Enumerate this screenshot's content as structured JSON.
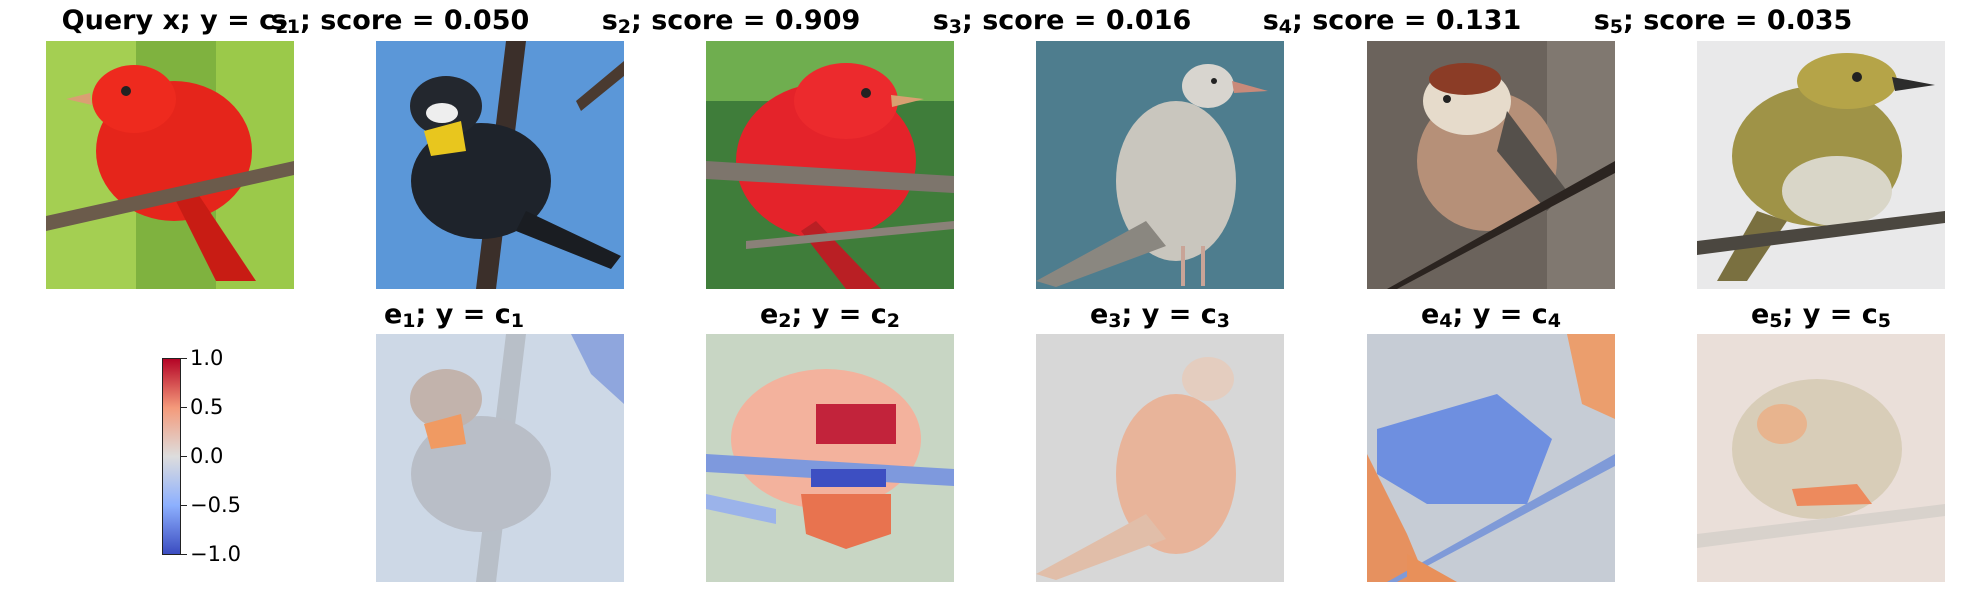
{
  "query": {
    "title": "Query x; y = c",
    "title_sub": "2"
  },
  "samples": [
    {
      "label": "s",
      "sub": "1",
      "score_text": "; score = 0.050"
    },
    {
      "label": "s",
      "sub": "2",
      "score_text": "; score = 0.909"
    },
    {
      "label": "s",
      "sub": "3",
      "score_text": "; score = 0.016"
    },
    {
      "label": "s",
      "sub": "4",
      "score_text": "; score = 0.131"
    },
    {
      "label": "s",
      "sub": "5",
      "score_text": "; score = 0.035"
    }
  ],
  "explanations": [
    {
      "label": "e",
      "sub": "1",
      "rest": "; y = c",
      "class_sub": "1"
    },
    {
      "label": "e",
      "sub": "2",
      "rest": "; y = c",
      "class_sub": "2"
    },
    {
      "label": "e",
      "sub": "3",
      "rest": "; y = c",
      "class_sub": "3"
    },
    {
      "label": "e",
      "sub": "4",
      "rest": "; y = c",
      "class_sub": "4"
    },
    {
      "label": "e",
      "sub": "5",
      "rest": "; y = c",
      "class_sub": "5"
    }
  ],
  "colorbar": {
    "ticks": [
      "1.0",
      "0.5",
      "0.0",
      "−0.5",
      "−1.0"
    ],
    "colors": {
      "low": "#3b4cc0",
      "mid": "#dddddd",
      "high": "#b40426"
    }
  }
}
